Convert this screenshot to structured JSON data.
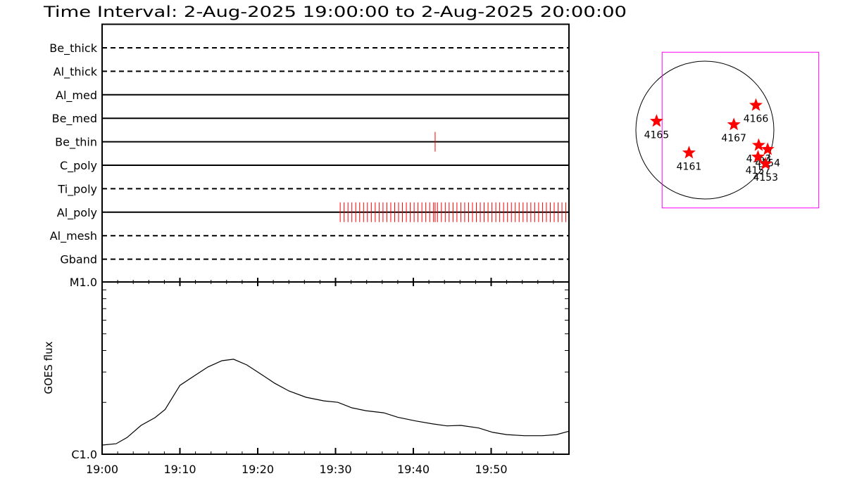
{
  "chart_data": [
    {
      "type": "timeline",
      "title": "Time Interval:  2-Aug-2025 19:00:00 to  2-Aug-2025 20:00:00",
      "categories": [
        "Be_thick",
        "Al_thick",
        "Al_med",
        "Be_med",
        "Be_thin",
        "C_poly",
        "Ti_poly",
        "Al_poly",
        "Al_mesh",
        "Gband"
      ],
      "line_styles": [
        "dashed",
        "dashed",
        "solid",
        "solid",
        "solid",
        "solid",
        "dashed",
        "solid",
        "dashed",
        "dashed"
      ],
      "exposures": [
        [],
        [],
        [],
        [],
        [
          42.8
        ],
        [],
        [],
        [
          30.6,
          31.1,
          31.6,
          32.1,
          32.6,
          33.1,
          33.6,
          34.1,
          34.6,
          35.1,
          35.6,
          36.1,
          36.6,
          37.1,
          37.6,
          38.1,
          38.6,
          39.1,
          39.6,
          40.1,
          40.6,
          41.1,
          41.6,
          42.1,
          42.6,
          42.8,
          43.1,
          43.6,
          44.1,
          44.6,
          45.1,
          45.6,
          46.1,
          46.6,
          47.1,
          47.6,
          48.1,
          48.6,
          49.1,
          49.6,
          50.1,
          50.6,
          51.1,
          51.6,
          52.1,
          52.6,
          53.1,
          53.6,
          54.1,
          54.6,
          55.1,
          55.6,
          56.1,
          56.6,
          57.1,
          57.6,
          58.1,
          58.6,
          59.1,
          59.6
        ],
        [],
        []
      ],
      "color": "#ff0000",
      "xlim": [
        0,
        60
      ]
    },
    {
      "type": "line",
      "ylabel": "GOES flux",
      "x": [
        0,
        1.8,
        3.2,
        5.0,
        6.8,
        8.1,
        10.0,
        11.8,
        13.6,
        15.4,
        16.9,
        18.6,
        20.4,
        22.2,
        24.0,
        26.2,
        28.5,
        30.3,
        32.1,
        33.9,
        36.2,
        38.0,
        40.3,
        42.5,
        44.3,
        46.1,
        48.4,
        50.2,
        52.0,
        54.3,
        56.6,
        58.4,
        60
      ],
      "values": [
        1.13e-06,
        1.15e-06,
        1.25e-06,
        1.47e-06,
        1.63e-06,
        1.82e-06,
        2.51e-06,
        2.84e-06,
        3.21e-06,
        3.49e-06,
        3.56e-06,
        3.3e-06,
        2.92e-06,
        2.58e-06,
        2.33e-06,
        2.14e-06,
        2.04e-06,
        2e-06,
        1.86e-06,
        1.79e-06,
        1.74e-06,
        1.64e-06,
        1.56e-06,
        1.5e-06,
        1.46e-06,
        1.47e-06,
        1.42e-06,
        1.34e-06,
        1.3e-06,
        1.28e-06,
        1.28e-06,
        1.3e-06,
        1.36e-06
      ],
      "color": "#000000",
      "log_y": true,
      "xlim": [
        0,
        60
      ],
      "xticks": [
        {
          "value": 0,
          "label": "19:00"
        },
        {
          "value": 10,
          "label": "19:10"
        },
        {
          "value": 20,
          "label": "19:20"
        },
        {
          "value": 30,
          "label": "19:30"
        },
        {
          "value": 40,
          "label": "19:40"
        },
        {
          "value": 50,
          "label": "19:50"
        }
      ],
      "xminor": 2,
      "ylim": [
        1e-06,
        1e-05
      ],
      "yticks": [
        {
          "value": 1e-06,
          "label": "C1.0"
        },
        {
          "value": 1e-05,
          "label": "M1.0"
        }
      ]
    },
    {
      "type": "map",
      "names": [
        "4165",
        "4161",
        "4167",
        "4166",
        "4163",
        "4154",
        "4157",
        "4153"
      ],
      "x": [
        -0.7,
        -0.23,
        0.42,
        0.74,
        0.78,
        0.91,
        0.77,
        0.88
      ],
      "y": [
        0.13,
        -0.33,
        0.08,
        0.36,
        -0.22,
        -0.28,
        -0.39,
        -0.49
      ],
      "color": "#ff0000",
      "fov_x": [
        -0.62,
        1.65
      ],
      "fov_y": [
        -1.13,
        1.13
      ],
      "fov_color": "#ff00ff"
    }
  ]
}
